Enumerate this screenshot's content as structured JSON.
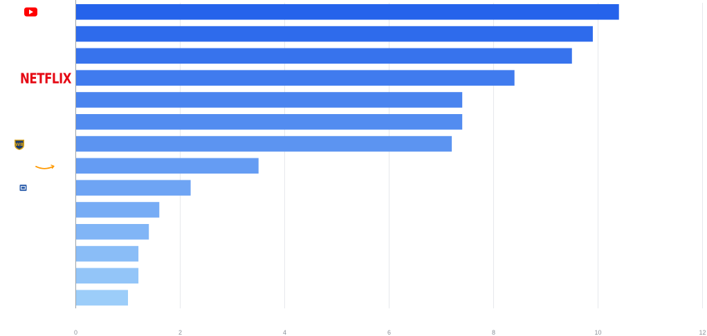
{
  "chart_data": {
    "type": "bar",
    "orientation": "horizontal",
    "categories": [
      "YouTube",
      "",
      "",
      "Netflix",
      "",
      "",
      "Warner Bros",
      "Amazon",
      "",
      "",
      "",
      "",
      "",
      ""
    ],
    "values": [
      10.4,
      9.9,
      9.5,
      8.4,
      7.4,
      7.4,
      7.2,
      3.5,
      2.2,
      1.6,
      1.4,
      1.2,
      1.2,
      1.0
    ],
    "xlim": [
      0,
      12
    ],
    "x_ticks": [
      "0",
      "2",
      "4",
      "6",
      "8",
      "10",
      "12"
    ],
    "grid": "vertical",
    "legend": "none",
    "category_labels": "logos",
    "logos": [
      {
        "index": 0,
        "icon": "youtube-logo-icon",
        "text": ""
      },
      {
        "index": 3,
        "icon": "netflix-logo",
        "text": "NETFLIX"
      },
      {
        "index": 6,
        "icon": "warner-bros-logo-icon",
        "text": ""
      },
      {
        "index": 7,
        "icon": "amazon-logo-icon",
        "text": ""
      },
      {
        "index": 8,
        "icon": "tv-network-logo-icon",
        "text": ""
      }
    ],
    "colors": {
      "bar_start": "#2563eb",
      "bar_end": "#9ccdf9",
      "grid": "#e6e8ec",
      "axis": "#9aa0a6",
      "tick_text": "#8a8f98",
      "youtube_red": "#ff0000",
      "netflix_red": "#e50914",
      "amazon_orange": "#ff9900",
      "warner_gold": "#d4a017",
      "warner_navy": "#1c3a6b",
      "tv_blue": "#2a5caa"
    }
  }
}
